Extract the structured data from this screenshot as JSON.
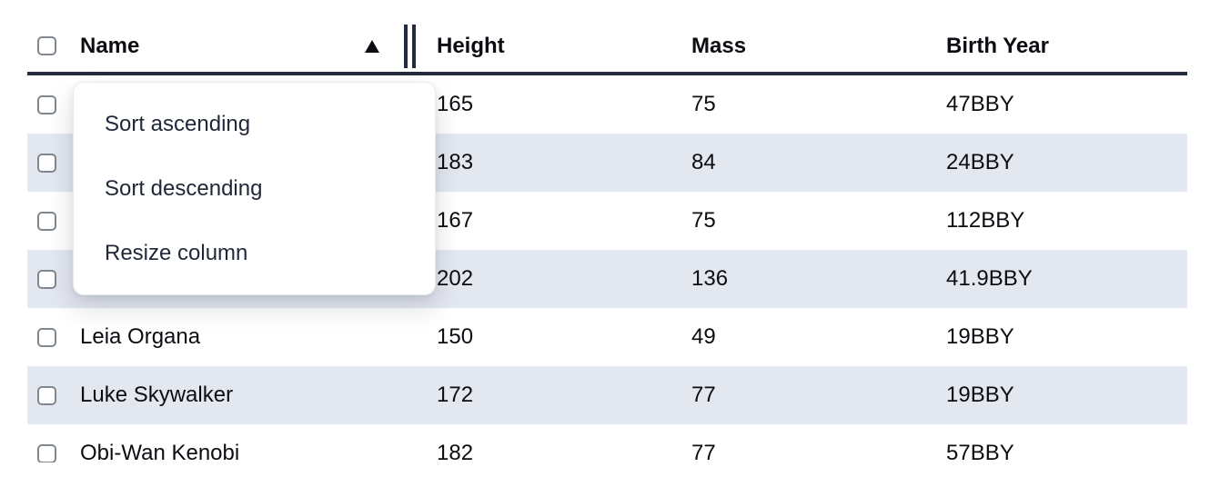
{
  "table": {
    "columns": [
      {
        "label": "Name",
        "sort": "ascending",
        "sort_indicator": "▲"
      },
      {
        "label": "Height",
        "sort": null
      },
      {
        "label": "Mass",
        "sort": null
      },
      {
        "label": "Birth Year",
        "sort": null
      }
    ],
    "rows": [
      {
        "name": "",
        "height": "165",
        "mass": "75",
        "birth_year": "47BBY",
        "selected": false
      },
      {
        "name": "",
        "height": "183",
        "mass": "84",
        "birth_year": "24BBY",
        "selected": false
      },
      {
        "name": "",
        "height": "167",
        "mass": "75",
        "birth_year": "112BBY",
        "selected": false
      },
      {
        "name": "",
        "height": "202",
        "mass": "136",
        "birth_year": "41.9BBY",
        "selected": false
      },
      {
        "name": "Leia Organa",
        "height": "150",
        "mass": "49",
        "birth_year": "19BBY",
        "selected": false
      },
      {
        "name": "Luke Skywalker",
        "height": "172",
        "mass": "77",
        "birth_year": "19BBY",
        "selected": false
      },
      {
        "name": "Obi-Wan Kenobi",
        "height": "182",
        "mass": "77",
        "birth_year": "57BBY",
        "selected": false
      }
    ],
    "select_all_checked": false
  },
  "context_menu": {
    "items": [
      {
        "label": "Sort ascending"
      },
      {
        "label": "Sort descending"
      },
      {
        "label": "Resize column"
      }
    ]
  },
  "colors": {
    "striped_row": "#e3e7ef",
    "header_border": "#232c3d",
    "text": "#0b0d12",
    "menu_text": "#1e2838",
    "checkbox_border": "#81878f"
  }
}
